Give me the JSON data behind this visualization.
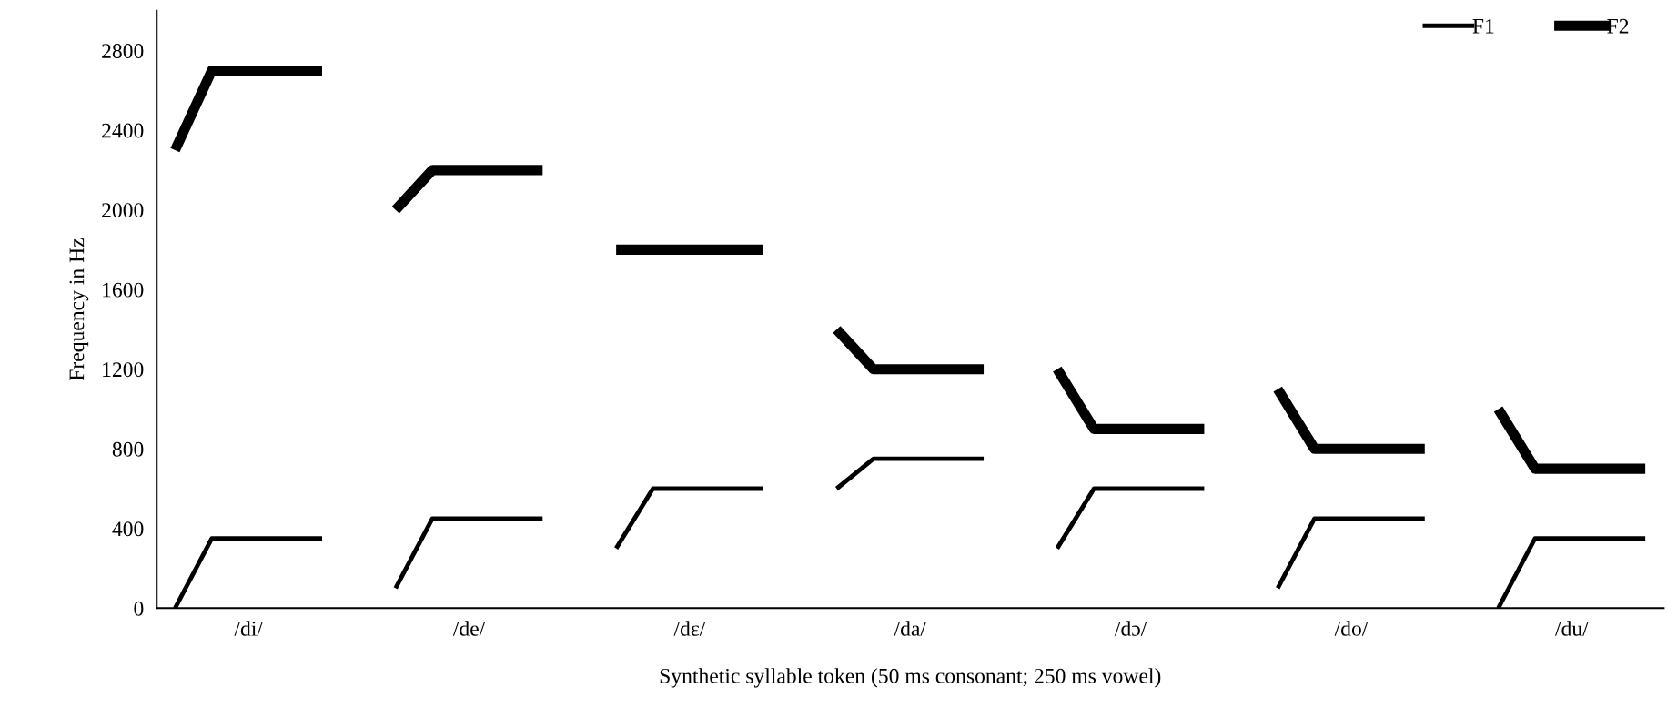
{
  "chart_data": {
    "type": "line",
    "xlabel": "Synthetic syllable token (50 ms consonant; 250 ms vowel)",
    "ylabel": "Frequency in Hz",
    "categories": [
      null,
      null,
      "/di/",
      null,
      null,
      null,
      null,
      null,
      "/de/",
      null,
      null,
      null,
      null,
      null,
      "/dε/",
      null,
      null,
      null,
      null,
      null,
      "/da/",
      null,
      null,
      null,
      null,
      null,
      "/dɔ/",
      null,
      null,
      null,
      null,
      null,
      "/do/",
      null,
      null,
      null,
      null,
      null,
      "/du/",
      null,
      null
    ],
    "series": [
      {
        "name": "F1",
        "color": "#000000",
        "values": [
          0,
          350,
          350,
          350,
          350,
          null,
          100,
          450,
          450,
          450,
          450,
          null,
          300,
          600,
          600,
          600,
          600,
          null,
          600,
          750,
          750,
          750,
          750,
          null,
          300,
          600,
          600,
          600,
          600,
          null,
          100,
          450,
          450,
          450,
          450,
          null,
          0,
          350,
          350,
          350,
          350
        ]
      },
      {
        "name": "F2",
        "color": "#000000",
        "values": [
          2300,
          2700,
          2700,
          2700,
          2700,
          null,
          2000,
          2200,
          2200,
          2200,
          2200,
          null,
          1800,
          1800,
          1800,
          1800,
          1800,
          null,
          1400,
          1200,
          1200,
          1200,
          1200,
          null,
          1200,
          900,
          900,
          900,
          900,
          null,
          1100,
          800,
          800,
          800,
          800,
          null,
          1000,
          700,
          700,
          700,
          700
        ]
      }
    ],
    "ylim": [
      0,
      3000
    ],
    "yticks": [
      0,
      400,
      800,
      1200,
      1600,
      2000,
      2400,
      2800
    ],
    "grid": false,
    "legend": "top right",
    "marker": "none",
    "line_style": "solid"
  }
}
